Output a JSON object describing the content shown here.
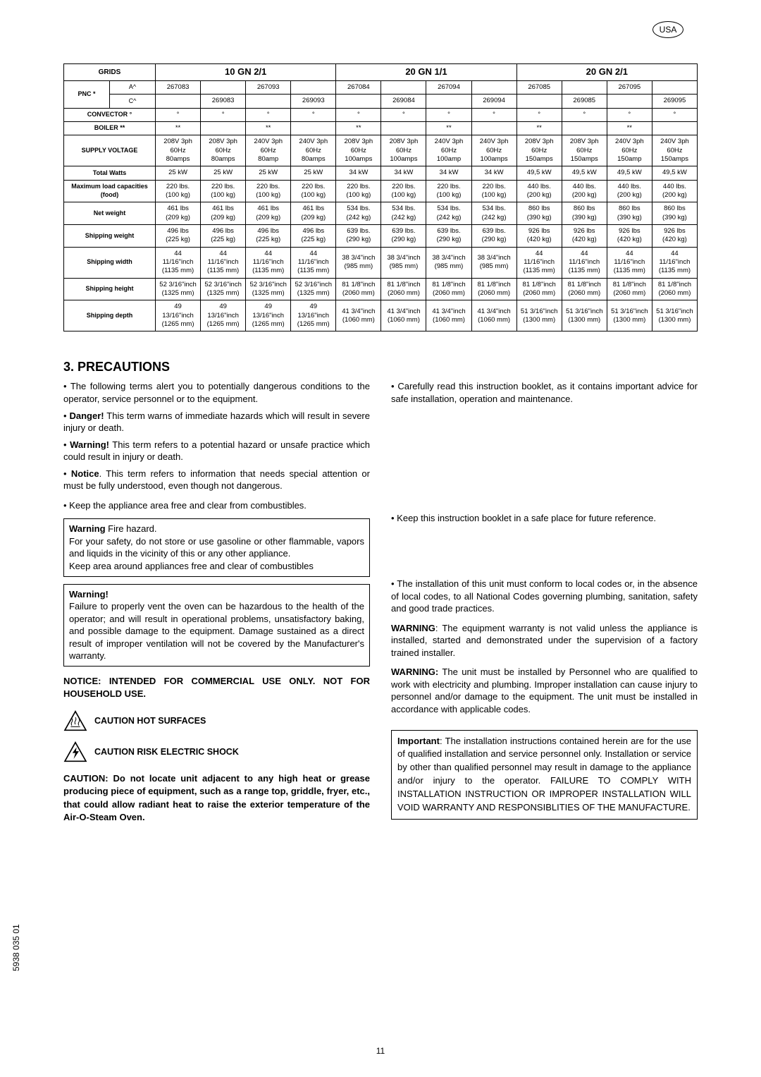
{
  "usa": "USA",
  "table": {
    "grids_label": "GRIDS",
    "groups": [
      "10 GN 2/1",
      "20 GN 1/1",
      "20 GN 2/1"
    ],
    "pnc_label": "PNC *",
    "sub_a": "A^",
    "sub_c": "C^",
    "pnc_a": [
      "267083",
      "",
      "267093",
      "",
      "267084",
      "",
      "267094",
      "",
      "267085",
      "",
      "267095",
      ""
    ],
    "pnc_c": [
      "",
      "269083",
      "",
      "269093",
      "",
      "269084",
      "",
      "269094",
      "",
      "269085",
      "",
      "269095"
    ],
    "rows": [
      {
        "label": "CONVECTOR °",
        "cells": [
          "°",
          "°",
          "°",
          "°",
          "°",
          "°",
          "°",
          "°",
          "°",
          "°",
          "°",
          "°"
        ]
      },
      {
        "label": "BOILER **",
        "cells": [
          "**",
          "",
          "**",
          "",
          "**",
          "",
          "**",
          "",
          "**",
          "",
          "**",
          ""
        ]
      },
      {
        "label": "SUPPLY VOLTAGE",
        "cells": [
          "208V 3ph\n60Hz\n80amps",
          "208V 3ph\n60Hz\n80amps",
          "240V 3ph\n60Hz\n80amp",
          "240V 3ph\n60Hz\n80amps",
          "208V 3ph\n60Hz\n100amps",
          "208V 3ph\n60Hz\n100amps",
          "240V 3ph\n60Hz\n100amp",
          "240V 3ph\n60Hz\n100amps",
          "208V 3ph\n60Hz\n150amps",
          "208V 3ph\n60Hz\n150amps",
          "240V 3ph\n60Hz\n150amp",
          "240V 3ph\n60Hz\n150amps"
        ]
      },
      {
        "label": "Total Watts",
        "cells": [
          "25 kW",
          "25 kW",
          "25 kW",
          "25 kW",
          "34 kW",
          "34 kW",
          "34 kW",
          "34 kW",
          "49,5 kW",
          "49,5 kW",
          "49,5 kW",
          "49,5 kW"
        ]
      },
      {
        "label": "Maximum load capacities\n(food)",
        "cells": [
          "220 lbs.\n(100 kg)",
          "220 lbs.\n(100 kg)",
          "220 lbs.\n(100 kg)",
          "220 lbs.\n(100 kg)",
          "220 lbs.\n(100 kg)",
          "220 lbs.\n(100 kg)",
          "220 lbs.\n(100 kg)",
          "220 lbs.\n(100 kg)",
          "440 lbs.\n(200 kg)",
          "440 lbs.\n(200 kg)",
          "440 lbs.\n(200 kg)",
          "440 lbs.\n(200 kg)"
        ]
      },
      {
        "label": "Net weight",
        "cells": [
          "461 lbs\n(209 kg)",
          "461 lbs\n(209 kg)",
          "461 lbs\n(209 kg)",
          "461 lbs\n(209 kg)",
          "534 lbs.\n(242 kg)",
          "534 lbs.\n(242 kg)",
          "534 lbs.\n(242 kg)",
          "534 lbs.\n(242 kg)",
          "860 lbs\n(390 kg)",
          "860 lbs\n(390 kg)",
          "860 lbs\n(390 kg)",
          "860 lbs\n(390 kg)"
        ]
      },
      {
        "label": "Shipping weight",
        "cells": [
          "496 lbs\n(225 kg)",
          "496 lbs\n(225 kg)",
          "496 lbs\n(225 kg)",
          "496 lbs\n(225 kg)",
          "639 lbs.\n(290 kg)",
          "639 lbs.\n(290 kg)",
          "639 lbs.\n(290 kg)",
          "639 lbs.\n(290 kg)",
          "926 lbs\n(420 kg)",
          "926 lbs\n(420 kg)",
          "926 lbs\n(420 kg)",
          "926 lbs\n(420 kg)"
        ]
      },
      {
        "label": "Shipping width",
        "cells": [
          "44\n11/16\"inch\n(1135 mm)",
          "44\n11/16\"inch\n(1135 mm)",
          "44\n11/16\"inch\n(1135 mm)",
          "44\n11/16\"inch\n(1135 mm)",
          "38 3/4\"inch\n(985 mm)",
          "38 3/4\"inch\n(985 mm)",
          "38 3/4\"inch\n(985 mm)",
          "38 3/4\"inch\n(985 mm)",
          "44\n11/16\"inch\n(1135 mm)",
          "44\n11/16\"inch\n(1135 mm)",
          "44\n11/16\"inch\n(1135 mm)",
          "44\n11/16\"inch\n(1135 mm)"
        ]
      },
      {
        "label": "Shipping height",
        "cells": [
          "52 3/16\"inch\n(1325 mm)",
          "52 3/16\"inch\n(1325 mm)",
          "52 3/16\"inch\n(1325 mm)",
          "52 3/16\"inch\n(1325 mm)",
          "81 1/8\"inch\n(2060 mm)",
          "81 1/8\"inch\n(2060 mm)",
          "81 1/8\"inch\n(2060 mm)",
          "81 1/8\"inch\n(2060 mm)",
          "81 1/8\"inch\n(2060 mm)",
          "81 1/8\"inch\n(2060 mm)",
          "81 1/8\"inch\n(2060 mm)",
          "81 1/8\"inch\n(2060 mm)"
        ]
      },
      {
        "label": "Shipping depth",
        "cells": [
          "49\n13/16\"inch\n(1265 mm)",
          "49\n13/16\"inch\n(1265 mm)",
          "49\n13/16\"inch\n(1265 mm)",
          "49\n13/16\"inch\n(1265 mm)",
          "41 3/4\"inch\n(1060 mm)",
          "41 3/4\"inch\n(1060 mm)",
          "41 3/4\"inch\n(1060 mm)",
          "41 3/4\"inch\n(1060 mm)",
          "51 3/16\"inch\n(1300 mm)",
          "51 3/16\"inch\n(1300 mm)",
          "51 3/16\"inch\n(1300 mm)",
          "51 3/16\"inch\n(1300 mm)"
        ]
      }
    ]
  },
  "section_title": "3.    PRECAUTIONS",
  "left": {
    "intro": "The following terms alert you to potentially dangerous conditions to the operator, service personnel or to the equipment.",
    "danger_b": "Danger!",
    "danger": " This term warns of immediate hazards which will result in severe injury or death.",
    "warning_b": "Warning!",
    "warning": " This term refers to a potential hazard or unsafe practice which could result in injury or death.",
    "notice_b": "Notice",
    "notice": ". This term refers to information that needs special attention or must be fully understood, even though not dangerous.",
    "keep_free": "Keep the appliance area free and clear from combustibles.",
    "box1_b": "Warning",
    "box1_title": " Fire hazard.",
    "box1_body1": "For your safety, do not store or use gasoline or other flammable, vapors and liquids in the vicinity of this or any other appliance.",
    "box1_body2": "Keep area around appliances free and clear of combustibles",
    "box2_b": "Warning!",
    "box2_body": "Failure to properly vent the oven can be hazardous to the health of the operator; and will result in operational problems, unsatisfactory baking, and possible damage to the equipment. Damage sustained as a direct result of improper ventilation will not be covered by the Manufacturer's warranty.",
    "notice_commercial": "NOTICE:  INTENDED FOR COMMERCIAL USE ONLY.  NOT FOR HOUSEHOLD USE.",
    "caution_hot": "CAUTION HOT SURFACES",
    "caution_shock": "CAUTION RISK ELECTRIC SHOCK",
    "caution_text": "CAUTION:  Do not locate unit adjacent to any high heat or grease producing piece of equipment, such as a range top, griddle, fryer, etc., that could allow radiant heat to raise the exterior temperature of the Air-O-Steam Oven."
  },
  "right": {
    "careful": "Carefully read this instruction booklet, as it contains important advice for safe installation, operation and maintenance.",
    "keep_booklet": "Keep this instruction booklet in a safe place for future reference.",
    "install1": "The installation of this unit must conform to local codes or, in the absence of local codes, to all National Codes governing plumbing, sanitation, safety and good trade practices.",
    "warn1_b": "WARNING",
    "warn1": ":  The equipment warranty is not valid unless the appliance is installed, started and demonstrated under the supervision of a factory trained installer.",
    "warn2_b": "WARNING:",
    "warn2": "  The unit must be installed by Personnel who are qualified to work with electricity and plumbing. Improper installation can cause injury to personnel and/or damage to the equipment. The unit must be installed in accordance with applicable codes.",
    "imp_b": "Important",
    "imp_body": ": The installation instructions contained herein are for the use of qualified installation and service personnel only.  Installation or service by other than qualified personnel may result in damage to the appliance and/or injury to the operator.  FAILURE TO COMPLY WITH INSTALLATION INSTRUCTION OR IMPROPER INSTALLATION WILL VOID WARRANTY AND RESPONSIBLITIES OF THE MANUFACTURE."
  },
  "side_code": "5938 035 01",
  "page_num": "11"
}
